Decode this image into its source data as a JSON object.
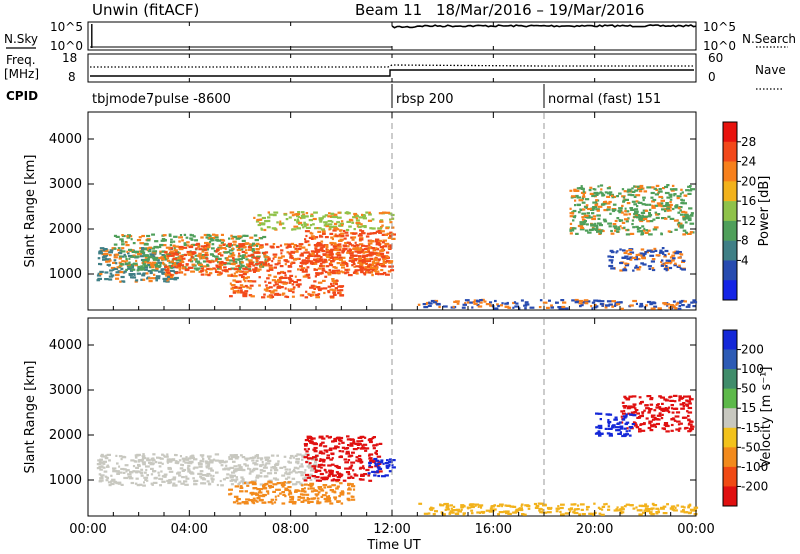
{
  "header": {
    "radar": "Unwin (fitACF)",
    "beam_text": "Beam 11",
    "date_range": "18/Mar/2016 – 19/Mar/2016"
  },
  "nsky_panel": {
    "left_label": "N.Sky",
    "left_ticks": [
      "10^5",
      "10^0"
    ],
    "right_ticks": [
      "10^5",
      "10^0"
    ],
    "right_label": "N.Search"
  },
  "freq_panel": {
    "left_label_1": "Freq.",
    "left_label_2": "[MHz]",
    "left_ticks": [
      "18",
      "8"
    ],
    "right_ticks": [
      "60",
      "0"
    ],
    "right_label": "Nave"
  },
  "cpid": {
    "label": "CPID",
    "segments": [
      {
        "start": 0,
        "name": "tbjmode7pulse -8600"
      },
      {
        "start": 12,
        "name": "rbsp 200"
      },
      {
        "start": 18,
        "name": "normal (fast) 151"
      }
    ]
  },
  "colorbar_power": {
    "label": "Power [dB]",
    "ticks": [
      "28",
      "24",
      "20",
      "16",
      "12",
      "8",
      "4"
    ],
    "colors": [
      "#e8120d",
      "#f2481a",
      "#f7801c",
      "#f2b21c",
      "#8fc24a",
      "#4f9f5a",
      "#3f7f86",
      "#274bb0",
      "#1424e6"
    ]
  },
  "colorbar_velocity": {
    "label": "Velocity [m s⁻¹]",
    "ticks": [
      "200",
      "100",
      "50",
      "15",
      "-15",
      "-50",
      "-100",
      "-200"
    ],
    "colors": [
      "#1428d8",
      "#2d5bb5",
      "#3f8c6a",
      "#5db94a",
      "#c8c8c0",
      "#f2c21c",
      "#f28a1c",
      "#f04a14",
      "#e01010"
    ]
  },
  "axes": {
    "y_label": "Slant Range [km]",
    "y_ticks": [
      "1000",
      "2000",
      "3000",
      "4000"
    ],
    "x_ticks": [
      "00:00",
      "04:00",
      "08:00",
      "12:00",
      "16:00",
      "20:00",
      "00:00"
    ],
    "x_label": "Time UT"
  },
  "chart_data": {
    "type": "heatmap",
    "title": "Unwin (fitACF)  Beam 11  18/Mar/2016 – 19/Mar/2016",
    "xlabel": "Time UT",
    "ylabel": "Slant Range [km]",
    "x_range_hours": [
      0,
      24
    ],
    "ylim": [
      200,
      4600
    ],
    "panels": [
      {
        "name": "Power [dB]",
        "colorbar_ticks": [
          4,
          8,
          12,
          16,
          20,
          24,
          28
        ],
        "echo_regions": [
          {
            "t": [
              0.3,
              3.5
            ],
            "range_km": [
              850,
              1600
            ],
            "level": "8-12"
          },
          {
            "t": [
              1.0,
              7.0
            ],
            "range_km": [
              1100,
              1900
            ],
            "level": "12-20"
          },
          {
            "t": [
              3.0,
              11.8
            ],
            "range_km": [
              1000,
              1700
            ],
            "level": "20-28"
          },
          {
            "t": [
              5.5,
              10.0
            ],
            "range_km": [
              500,
              1000
            ],
            "level": "20-28"
          },
          {
            "t": [
              8.5,
              12.0
            ],
            "range_km": [
              1000,
              2000
            ],
            "level": "20-28"
          },
          {
            "t": [
              6.5,
              12.0
            ],
            "range_km": [
              2000,
              2400
            ],
            "level": "12-16"
          },
          {
            "t": [
              19.0,
              23.8
            ],
            "range_km": [
              1900,
              3000
            ],
            "level": "12-20"
          },
          {
            "t": [
              20.5,
              23.5
            ],
            "range_km": [
              1100,
              1600
            ],
            "level": "4-8"
          },
          {
            "t": [
              13.0,
              24.0
            ],
            "range_km": [
              250,
              450
            ],
            "level": "4-8"
          }
        ]
      },
      {
        "name": "Velocity [m s⁻¹]",
        "colorbar_ticks": [
          -200,
          -100,
          -50,
          -15,
          15,
          50,
          100,
          200
        ],
        "echo_regions": [
          {
            "t": [
              0.3,
              9.0
            ],
            "range_km": [
              900,
              1600
            ],
            "level": "-15..15"
          },
          {
            "t": [
              5.5,
              10.5
            ],
            "range_km": [
              500,
              1000
            ],
            "level": "-100..-50"
          },
          {
            "t": [
              8.5,
              11.5
            ],
            "range_km": [
              1000,
              2000
            ],
            "level": "-200..-100"
          },
          {
            "t": [
              11.0,
              12.0
            ],
            "range_km": [
              1100,
              1500
            ],
            "level": "100..200"
          },
          {
            "t": [
              21.0,
              23.8
            ],
            "range_km": [
              2100,
              2900
            ],
            "level": "-200..-100"
          },
          {
            "t": [
              20.0,
              21.5
            ],
            "range_km": [
              2000,
              2500
            ],
            "level": "100..200"
          },
          {
            "t": [
              13.0,
              24.0
            ],
            "range_km": [
              250,
              500
            ],
            "level": "-50..-15"
          }
        ]
      }
    ],
    "cpid_changes_hours": [
      12,
      18
    ]
  }
}
